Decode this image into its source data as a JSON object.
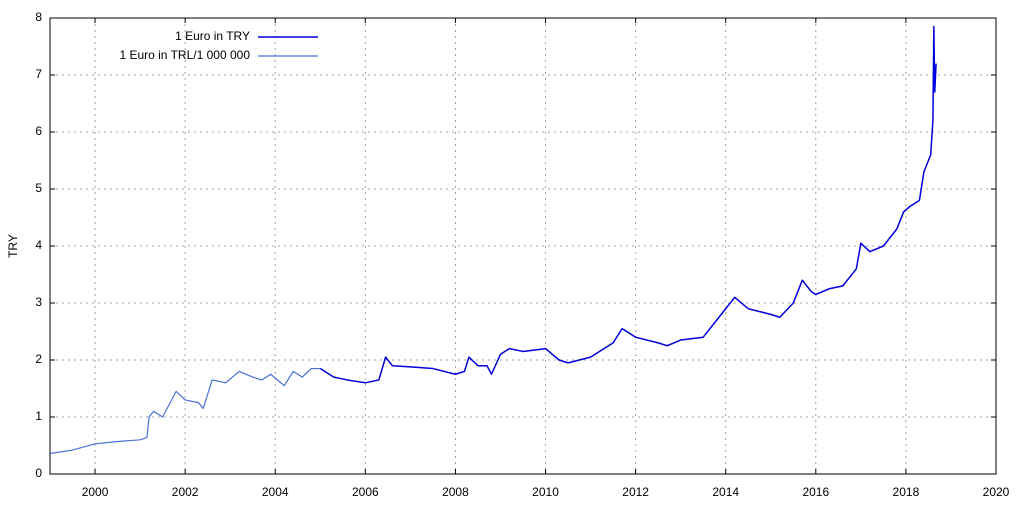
{
  "chart_data": {
    "type": "line",
    "ylabel": "TRY",
    "x": [
      1999,
      1999.5,
      2000,
      2000.5,
      2001,
      2001.15,
      2001.2,
      2001.3,
      2001.5,
      2001.8,
      2002,
      2002.3,
      2002.4,
      2002.6,
      2002.9,
      2003.2,
      2003.5,
      2003.7,
      2003.9,
      2004.2,
      2004.4,
      2004.6,
      2004.8,
      2005,
      2005.3,
      2005.6,
      2006,
      2006.3,
      2006.45,
      2006.6,
      2007,
      2007.5,
      2008,
      2008.2,
      2008.3,
      2008.5,
      2008.7,
      2008.8,
      2009,
      2009.2,
      2009.5,
      2010,
      2010.3,
      2010.5,
      2011,
      2011.5,
      2011.7,
      2012,
      2012.5,
      2012.7,
      2013,
      2013.5,
      2013.8,
      2014.1,
      2014.2,
      2014.5,
      2015,
      2015.2,
      2015.5,
      2015.7,
      2015.9,
      2016,
      2016.3,
      2016.6,
      2016.9,
      2017,
      2017.2,
      2017.5,
      2017.8,
      2017.95,
      2018.1,
      2018.3,
      2018.4,
      2018.5,
      2018.55,
      2018.6,
      2018.62,
      2018.64,
      2018.67
    ],
    "series": [
      {
        "name": "1 Euro in TRY",
        "color": "#0000dd",
        "width": 1.5,
        "values": [
          null,
          null,
          null,
          null,
          null,
          null,
          null,
          null,
          null,
          null,
          null,
          null,
          null,
          null,
          null,
          null,
          null,
          null,
          null,
          null,
          null,
          null,
          null,
          1.85,
          1.7,
          1.65,
          1.6,
          1.65,
          2.05,
          1.9,
          1.88,
          1.85,
          1.75,
          1.8,
          2.05,
          1.9,
          1.9,
          1.75,
          2.1,
          2.2,
          2.15,
          2.2,
          2.0,
          1.95,
          2.05,
          2.3,
          2.55,
          2.4,
          2.3,
          2.25,
          2.35,
          2.4,
          2.7,
          3.0,
          3.1,
          2.9,
          2.8,
          2.75,
          3.0,
          3.4,
          3.2,
          3.15,
          3.25,
          3.3,
          3.6,
          4.05,
          3.9,
          4.0,
          4.3,
          4.6,
          4.7,
          4.8,
          5.3,
          5.5,
          5.6,
          6.2,
          7.85,
          6.7,
          7.2
        ]
      },
      {
        "name": "1 Euro in TRL/1 000 000",
        "color": "#4a6fd8",
        "width": 1.2,
        "values": [
          0.36,
          0.42,
          0.53,
          0.57,
          0.6,
          0.64,
          1.0,
          1.1,
          1.0,
          1.45,
          1.3,
          1.25,
          1.15,
          1.65,
          1.6,
          1.8,
          1.7,
          1.65,
          1.75,
          1.55,
          1.8,
          1.7,
          1.85,
          1.85,
          null,
          null,
          null,
          null,
          null,
          null,
          null,
          null,
          null,
          null,
          null,
          null,
          null,
          null,
          null,
          null,
          null,
          null,
          null,
          null,
          null,
          null,
          null,
          null,
          null,
          null,
          null,
          null,
          null,
          null,
          null,
          null,
          null,
          null,
          null,
          null,
          null,
          null,
          null,
          null,
          null,
          null,
          null,
          null,
          null,
          null,
          null,
          null,
          null,
          null,
          null,
          null,
          null,
          null,
          null
        ]
      }
    ],
    "xlim": [
      1999,
      2020
    ],
    "xticks": [
      2000,
      2002,
      2004,
      2006,
      2008,
      2010,
      2012,
      2014,
      2016,
      2018,
      2020
    ],
    "ylim": [
      0,
      8
    ],
    "yticks": [
      0,
      1,
      2,
      3,
      4,
      5,
      6,
      7,
      8
    ],
    "grid": true,
    "legend": "top-left"
  }
}
